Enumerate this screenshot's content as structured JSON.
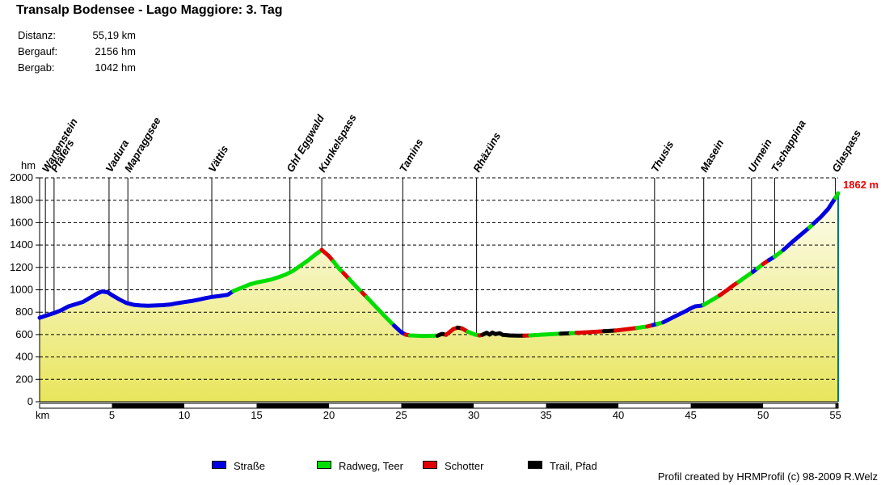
{
  "title": "Transalp Bodensee - Lago Maggiore: 3. Tag",
  "stats": [
    {
      "label": "Distanz:",
      "value": "55,19 km"
    },
    {
      "label": "Bergauf:",
      "value": "2156 hm"
    },
    {
      "label": "Bergab:",
      "value": "1042 hm"
    }
  ],
  "axis": {
    "y_unit": "hm",
    "x_unit": "km",
    "end_label": "1862 m",
    "end_label_color": "#ee0000"
  },
  "legend": [
    {
      "label": "Straße",
      "color": "#0000e0"
    },
    {
      "label": "Radweg, Teer",
      "color": "#00dd00"
    },
    {
      "label": "Schotter",
      "color": "#e00000"
    },
    {
      "label": "Trail, Pfad",
      "color": "#000000"
    }
  ],
  "credit": "Profil created by HRMProfil (c) 98-2009 R.Welz",
  "chart_data": {
    "type": "area",
    "title": "Transalp Bodensee - Lago Maggiore: 3. Tag",
    "xlabel": "km",
    "ylabel": "hm",
    "xlim": [
      0,
      55.19
    ],
    "ylim": [
      0,
      2000
    ],
    "x_ticks": [
      5,
      10,
      15,
      20,
      25,
      30,
      35,
      40,
      45,
      50,
      55
    ],
    "y_ticks": [
      0,
      200,
      400,
      600,
      800,
      1000,
      1200,
      1400,
      1600,
      1800,
      2000
    ],
    "grid": "dashed-horizontal",
    "end_elevation_m": 1862,
    "right_edge_color": "#007878",
    "fill_gradient": {
      "top": "#ffffff",
      "bottom": "#e8e55c"
    },
    "surface_colors": {
      "Straße": "#0000e0",
      "Radweg, Teer": "#00dd00",
      "Schotter": "#e00000",
      "Trail, Pfad": "#000000"
    },
    "scale_bar_black_km": [
      [
        5,
        10
      ],
      [
        15,
        20
      ],
      [
        25,
        30
      ],
      [
        35,
        40
      ],
      [
        45,
        50
      ],
      [
        55,
        55.19
      ]
    ],
    "waypoints": [
      {
        "name": "Wartenstein",
        "km": 0.4
      },
      {
        "name": "Pfäfers",
        "km": 1.0
      },
      {
        "name": "Vadura",
        "km": 4.8
      },
      {
        "name": "Mapraggsee",
        "km": 6.1
      },
      {
        "name": "Vättis",
        "km": 11.9
      },
      {
        "name": "Ghf  Eggwald",
        "km": 17.3
      },
      {
        "name": "Kunkelspass",
        "km": 19.5
      },
      {
        "name": "Tamins",
        "km": 25.1
      },
      {
        "name": "Rhäzüns",
        "km": 30.2
      },
      {
        "name": "Thusis",
        "km": 42.5
      },
      {
        "name": "Masein",
        "km": 45.9
      },
      {
        "name": "Urmein",
        "km": 49.2
      },
      {
        "name": "Tschappina",
        "km": 50.8
      },
      {
        "name": "Glaspass",
        "km": 55.0
      }
    ],
    "segments": [
      {
        "surface": "Straße",
        "points": [
          [
            0,
            750
          ],
          [
            0.5,
            772
          ],
          [
            1,
            792
          ],
          [
            1.5,
            818
          ],
          [
            2,
            852
          ],
          [
            2.5,
            872
          ],
          [
            3,
            892
          ],
          [
            3.5,
            930
          ],
          [
            4,
            968
          ],
          [
            4.3,
            985
          ],
          [
            4.7,
            978
          ],
          [
            5,
            952
          ],
          [
            5.5,
            915
          ],
          [
            6,
            882
          ],
          [
            6.5,
            866
          ],
          [
            7,
            860
          ],
          [
            7.5,
            857
          ],
          [
            8,
            860
          ],
          [
            8.5,
            863
          ],
          [
            9,
            868
          ],
          [
            9.5,
            880
          ],
          [
            10,
            890
          ],
          [
            10.5,
            900
          ],
          [
            11,
            912
          ],
          [
            11.5,
            926
          ],
          [
            12,
            938
          ],
          [
            12.5,
            946
          ],
          [
            13,
            955
          ],
          [
            13.4,
            990
          ]
        ]
      },
      {
        "surface": "Radweg, Teer",
        "points": [
          [
            13.4,
            990
          ],
          [
            14,
            1020
          ],
          [
            14.5,
            1048
          ],
          [
            15,
            1065
          ],
          [
            15.5,
            1078
          ],
          [
            16,
            1092
          ],
          [
            16.5,
            1112
          ],
          [
            17,
            1136
          ],
          [
            17.5,
            1168
          ],
          [
            18,
            1212
          ],
          [
            18.5,
            1258
          ],
          [
            19,
            1308
          ],
          [
            19.5,
            1357
          ]
        ]
      },
      {
        "surface": "Schotter",
        "points": [
          [
            19.5,
            1357
          ],
          [
            20,
            1300
          ],
          [
            20.3,
            1255
          ]
        ]
      },
      {
        "surface": "Radweg, Teer",
        "points": [
          [
            20.3,
            1255
          ],
          [
            20.7,
            1188
          ],
          [
            21,
            1150
          ]
        ]
      },
      {
        "surface": "Schotter",
        "points": [
          [
            21,
            1150
          ],
          [
            21.4,
            1095
          ]
        ]
      },
      {
        "surface": "Radweg, Teer",
        "points": [
          [
            21.4,
            1095
          ],
          [
            22,
            1012
          ],
          [
            22.3,
            975
          ]
        ]
      },
      {
        "surface": "Schotter",
        "points": [
          [
            22.3,
            975
          ],
          [
            22.6,
            935
          ]
        ]
      },
      {
        "surface": "Radweg, Teer",
        "points": [
          [
            22.6,
            935
          ],
          [
            23,
            880
          ],
          [
            23.5,
            812
          ],
          [
            24,
            745
          ],
          [
            24.5,
            680
          ]
        ]
      },
      {
        "surface": "Straße",
        "points": [
          [
            24.5,
            680
          ],
          [
            25,
            620
          ],
          [
            25.3,
            600
          ]
        ]
      },
      {
        "surface": "Schotter",
        "points": [
          [
            25.3,
            600
          ],
          [
            25.6,
            592
          ]
        ]
      },
      {
        "surface": "Radweg, Teer",
        "points": [
          [
            25.6,
            592
          ],
          [
            26.5,
            588
          ],
          [
            27.5,
            590
          ]
        ]
      },
      {
        "surface": "Trail, Pfad",
        "points": [
          [
            27.5,
            590
          ],
          [
            27.8,
            606
          ],
          [
            28.1,
            598
          ]
        ]
      },
      {
        "surface": "Schotter",
        "points": [
          [
            28.1,
            598
          ],
          [
            28.6,
            650
          ],
          [
            28.9,
            662
          ]
        ]
      },
      {
        "surface": "Trail, Pfad",
        "points": [
          [
            28.9,
            662
          ],
          [
            29.2,
            655
          ]
        ]
      },
      {
        "surface": "Schotter",
        "points": [
          [
            29.2,
            655
          ],
          [
            29.6,
            625
          ]
        ]
      },
      {
        "surface": "Radweg, Teer",
        "points": [
          [
            29.6,
            625
          ],
          [
            30.1,
            600
          ],
          [
            30.4,
            592
          ]
        ]
      },
      {
        "surface": "Schotter",
        "points": [
          [
            30.4,
            592
          ],
          [
            30.6,
            598
          ]
        ]
      },
      {
        "surface": "Trail, Pfad",
        "points": [
          [
            30.6,
            598
          ],
          [
            30.9,
            616
          ],
          [
            31.1,
            600
          ],
          [
            31.3,
            618
          ],
          [
            31.5,
            604
          ],
          [
            31.8,
            612
          ],
          [
            32,
            598
          ],
          [
            32.5,
            592
          ],
          [
            33,
            590
          ],
          [
            33.5,
            590
          ]
        ]
      },
      {
        "surface": "Schotter",
        "points": [
          [
            33.5,
            590
          ],
          [
            33.9,
            592
          ]
        ]
      },
      {
        "surface": "Radweg, Teer",
        "points": [
          [
            33.9,
            592
          ],
          [
            34.5,
            598
          ],
          [
            35.5,
            605
          ],
          [
            36,
            608
          ]
        ]
      },
      {
        "surface": "Trail, Pfad",
        "points": [
          [
            36,
            608
          ],
          [
            36.7,
            612
          ]
        ]
      },
      {
        "surface": "Radweg, Teer",
        "points": [
          [
            36.7,
            612
          ],
          [
            37.1,
            615
          ]
        ]
      },
      {
        "surface": "Schotter",
        "points": [
          [
            37.1,
            615
          ],
          [
            38,
            622
          ],
          [
            39,
            630
          ]
        ]
      },
      {
        "surface": "Trail, Pfad",
        "points": [
          [
            39,
            630
          ],
          [
            39.8,
            636
          ]
        ]
      },
      {
        "surface": "Schotter",
        "points": [
          [
            39.8,
            636
          ],
          [
            40.7,
            650
          ],
          [
            41.3,
            660
          ]
        ]
      },
      {
        "surface": "Radweg, Teer",
        "points": [
          [
            41.3,
            660
          ],
          [
            42,
            672
          ]
        ]
      },
      {
        "surface": "Schotter",
        "points": [
          [
            42,
            672
          ],
          [
            42.4,
            685
          ]
        ]
      },
      {
        "surface": "Straße",
        "points": [
          [
            42.4,
            685
          ],
          [
            42.7,
            695
          ]
        ]
      },
      {
        "surface": "Radweg, Teer",
        "points": [
          [
            42.7,
            695
          ],
          [
            43.1,
            710
          ]
        ]
      },
      {
        "surface": "Straße",
        "points": [
          [
            43.1,
            710
          ],
          [
            43.6,
            742
          ],
          [
            44.1,
            775
          ],
          [
            44.6,
            806
          ],
          [
            45,
            835
          ],
          [
            45.3,
            852
          ],
          [
            45.7,
            858
          ],
          [
            45.9,
            866
          ]
        ]
      },
      {
        "surface": "Radweg, Teer",
        "points": [
          [
            45.9,
            866
          ],
          [
            46.3,
            896
          ],
          [
            46.7,
            926
          ],
          [
            47,
            950
          ]
        ]
      },
      {
        "surface": "Schotter",
        "points": [
          [
            47,
            950
          ],
          [
            47.5,
            996
          ],
          [
            48,
            1045
          ],
          [
            48.3,
            1070
          ]
        ]
      },
      {
        "surface": "Radweg, Teer",
        "points": [
          [
            48.3,
            1070
          ],
          [
            48.8,
            1116
          ],
          [
            49.3,
            1160
          ]
        ]
      },
      {
        "surface": "Straße",
        "points": [
          [
            49.3,
            1160
          ],
          [
            49.6,
            1190
          ]
        ]
      },
      {
        "surface": "Radweg, Teer",
        "points": [
          [
            49.6,
            1190
          ],
          [
            50,
            1230
          ]
        ]
      },
      {
        "surface": "Schotter",
        "points": [
          [
            50,
            1230
          ],
          [
            50.4,
            1265
          ]
        ]
      },
      {
        "surface": "Straße",
        "points": [
          [
            50.4,
            1265
          ],
          [
            50.8,
            1296
          ]
        ]
      },
      {
        "surface": "Radweg, Teer",
        "points": [
          [
            50.8,
            1296
          ],
          [
            51.4,
            1356
          ]
        ]
      },
      {
        "surface": "Straße",
        "points": [
          [
            51.4,
            1356
          ],
          [
            52,
            1425
          ],
          [
            52.6,
            1490
          ],
          [
            53.2,
            1556
          ]
        ]
      },
      {
        "surface": "Radweg, Teer",
        "points": [
          [
            53.2,
            1556
          ],
          [
            53.5,
            1592
          ]
        ]
      },
      {
        "surface": "Straße",
        "points": [
          [
            53.5,
            1592
          ],
          [
            54,
            1652
          ],
          [
            54.5,
            1722
          ],
          [
            55,
            1822
          ]
        ]
      },
      {
        "surface": "Radweg, Teer",
        "points": [
          [
            55,
            1822
          ],
          [
            55.19,
            1862
          ]
        ]
      }
    ]
  }
}
